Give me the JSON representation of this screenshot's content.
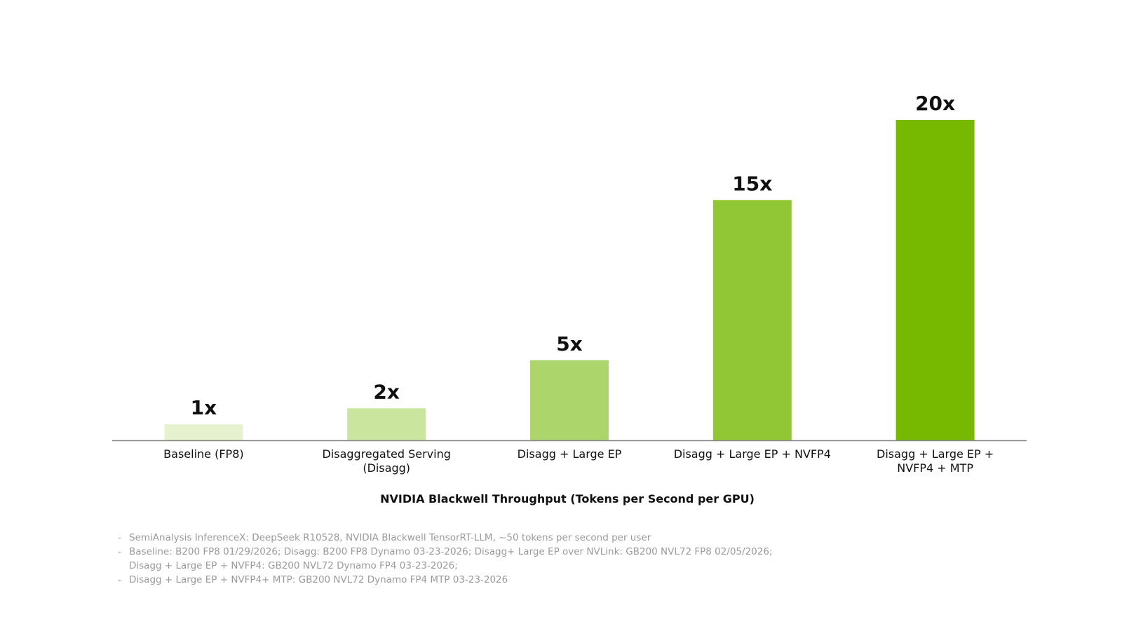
{
  "chart_data": {
    "type": "bar",
    "title": "",
    "xlabel": "NVIDIA Blackwell Throughput (Tokens per Second per GPU)",
    "ylabel": "",
    "ylim": [
      0,
      20
    ],
    "grid": false,
    "categories": [
      [
        "Baseline (FP8)"
      ],
      [
        "Disaggregated Serving",
        "(Disagg)"
      ],
      [
        "Disagg + Large EP"
      ],
      [
        "Disagg + Large EP + NVFP4"
      ],
      [
        "Disagg + Large EP +",
        "NVFP4 + MTP"
      ]
    ],
    "values": [
      1,
      2,
      5,
      15,
      20
    ],
    "data_labels": [
      "1x",
      "2x",
      "5x",
      "15x",
      "20x"
    ],
    "colors": [
      "#e6f2cf",
      "#cae59d",
      "#acd56c",
      "#91c635",
      "#76b900"
    ],
    "axis_color": "#888888"
  },
  "footnotes": [
    {
      "lines": [
        "SemiAnalysis InferenceX:  DeepSeek R10528, NVIDIA Blackwell TensorRT-LLM, ~50 tokens per second per user"
      ]
    },
    {
      "lines": [
        "Baseline: B200 FP8 01/29/2026; Disagg: B200 FP8 Dynamo 03-23-2026; Disagg+ Large EP over NVLink: GB200 NVL72 FP8 02/05/2026;",
        "Disagg + Large EP + NVFP4: GB200 NVL72 Dynamo FP4 03-23-2026;"
      ]
    },
    {
      "lines": [
        "Disagg + Large EP + NVFP4+ MTP: GB200 NVL72 Dynamo FP4 MTP 03-23-2026"
      ]
    }
  ],
  "footnote_marker": "-"
}
